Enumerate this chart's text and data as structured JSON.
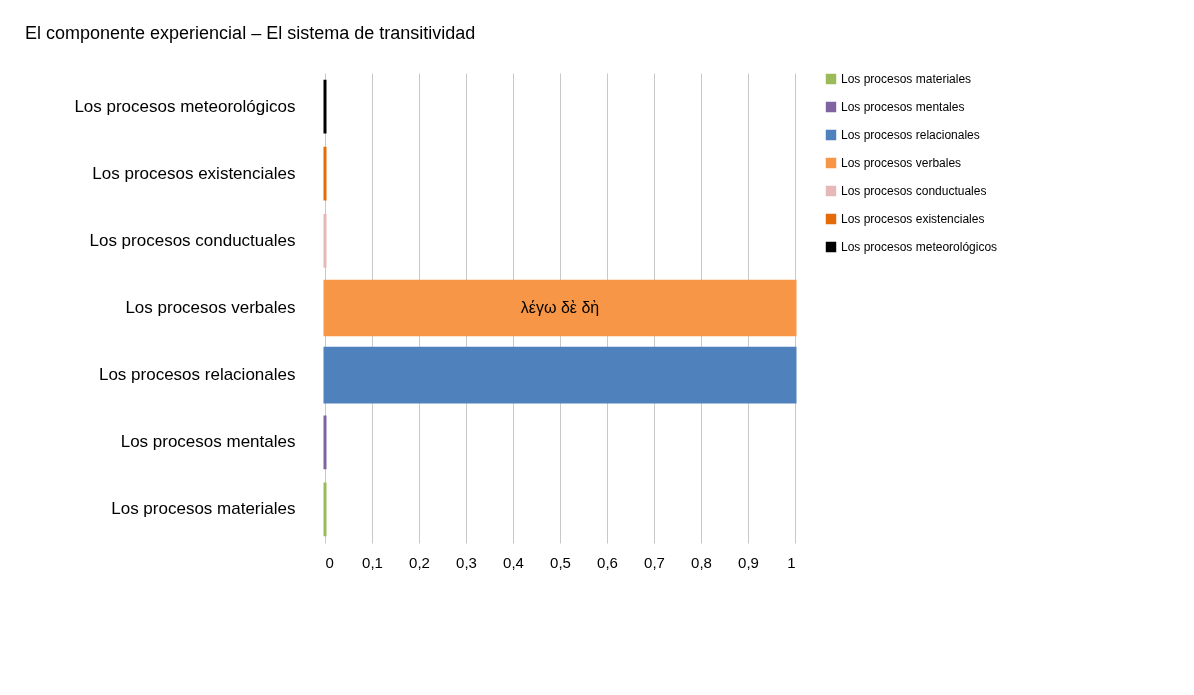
{
  "chart_data": {
    "type": "bar",
    "orientation": "horizontal",
    "title": "El componente experiencial – El sistema de transitividad",
    "categories": [
      "Los procesos meteorológicos",
      "Los procesos existenciales",
      "Los procesos conductuales",
      "Los procesos verbales",
      "Los procesos relacionales",
      "Los procesos mentales",
      "Los procesos materiales"
    ],
    "series": [
      {
        "name": "Los procesos materiales",
        "color": "#9bbb59",
        "values": [
          null,
          null,
          null,
          null,
          null,
          null,
          0
        ]
      },
      {
        "name": "Los procesos mentales",
        "color": "#8064a2",
        "values": [
          null,
          null,
          null,
          null,
          null,
          0,
          null
        ]
      },
      {
        "name": "Los procesos relacionales",
        "color": "#4f81bd",
        "values": [
          null,
          null,
          null,
          null,
          1,
          null,
          null
        ]
      },
      {
        "name": "Los procesos verbales",
        "color": "#f79646",
        "values": [
          null,
          null,
          null,
          1,
          null,
          null,
          null
        ]
      },
      {
        "name": "Los procesos conductuales",
        "color": "#e6b9b8",
        "values": [
          null,
          null,
          0,
          null,
          null,
          null,
          null
        ]
      },
      {
        "name": "Los procesos existenciales",
        "color": "#e36c09",
        "values": [
          null,
          0,
          null,
          null,
          null,
          null,
          null
        ]
      },
      {
        "name": "Los procesos meteorológicos",
        "color": "#000000",
        "values": [
          0,
          null,
          null,
          null,
          null,
          null,
          null
        ]
      }
    ],
    "xlim": [
      0,
      1
    ],
    "xticks": [
      0,
      {
        "value": 0.1,
        "label": "0,1"
      },
      {
        "value": 0.2,
        "label": "0,2"
      },
      {
        "value": 0.3,
        "label": "0,3"
      },
      {
        "value": 0.4,
        "label": "0,4"
      },
      {
        "value": 0.5,
        "label": "0,5"
      },
      {
        "value": 0.6,
        "label": "0,6"
      },
      {
        "value": 0.7,
        "label": "0,7"
      },
      {
        "value": 0.8,
        "label": "0,8"
      },
      {
        "value": 0.9,
        "label": "0,9"
      },
      1
    ],
    "grid": "x",
    "legend": "right",
    "annotations": [
      {
        "text": "λέγω δὲ δὴ",
        "x": 0.5,
        "y": "Los procesos verbales"
      }
    ]
  }
}
